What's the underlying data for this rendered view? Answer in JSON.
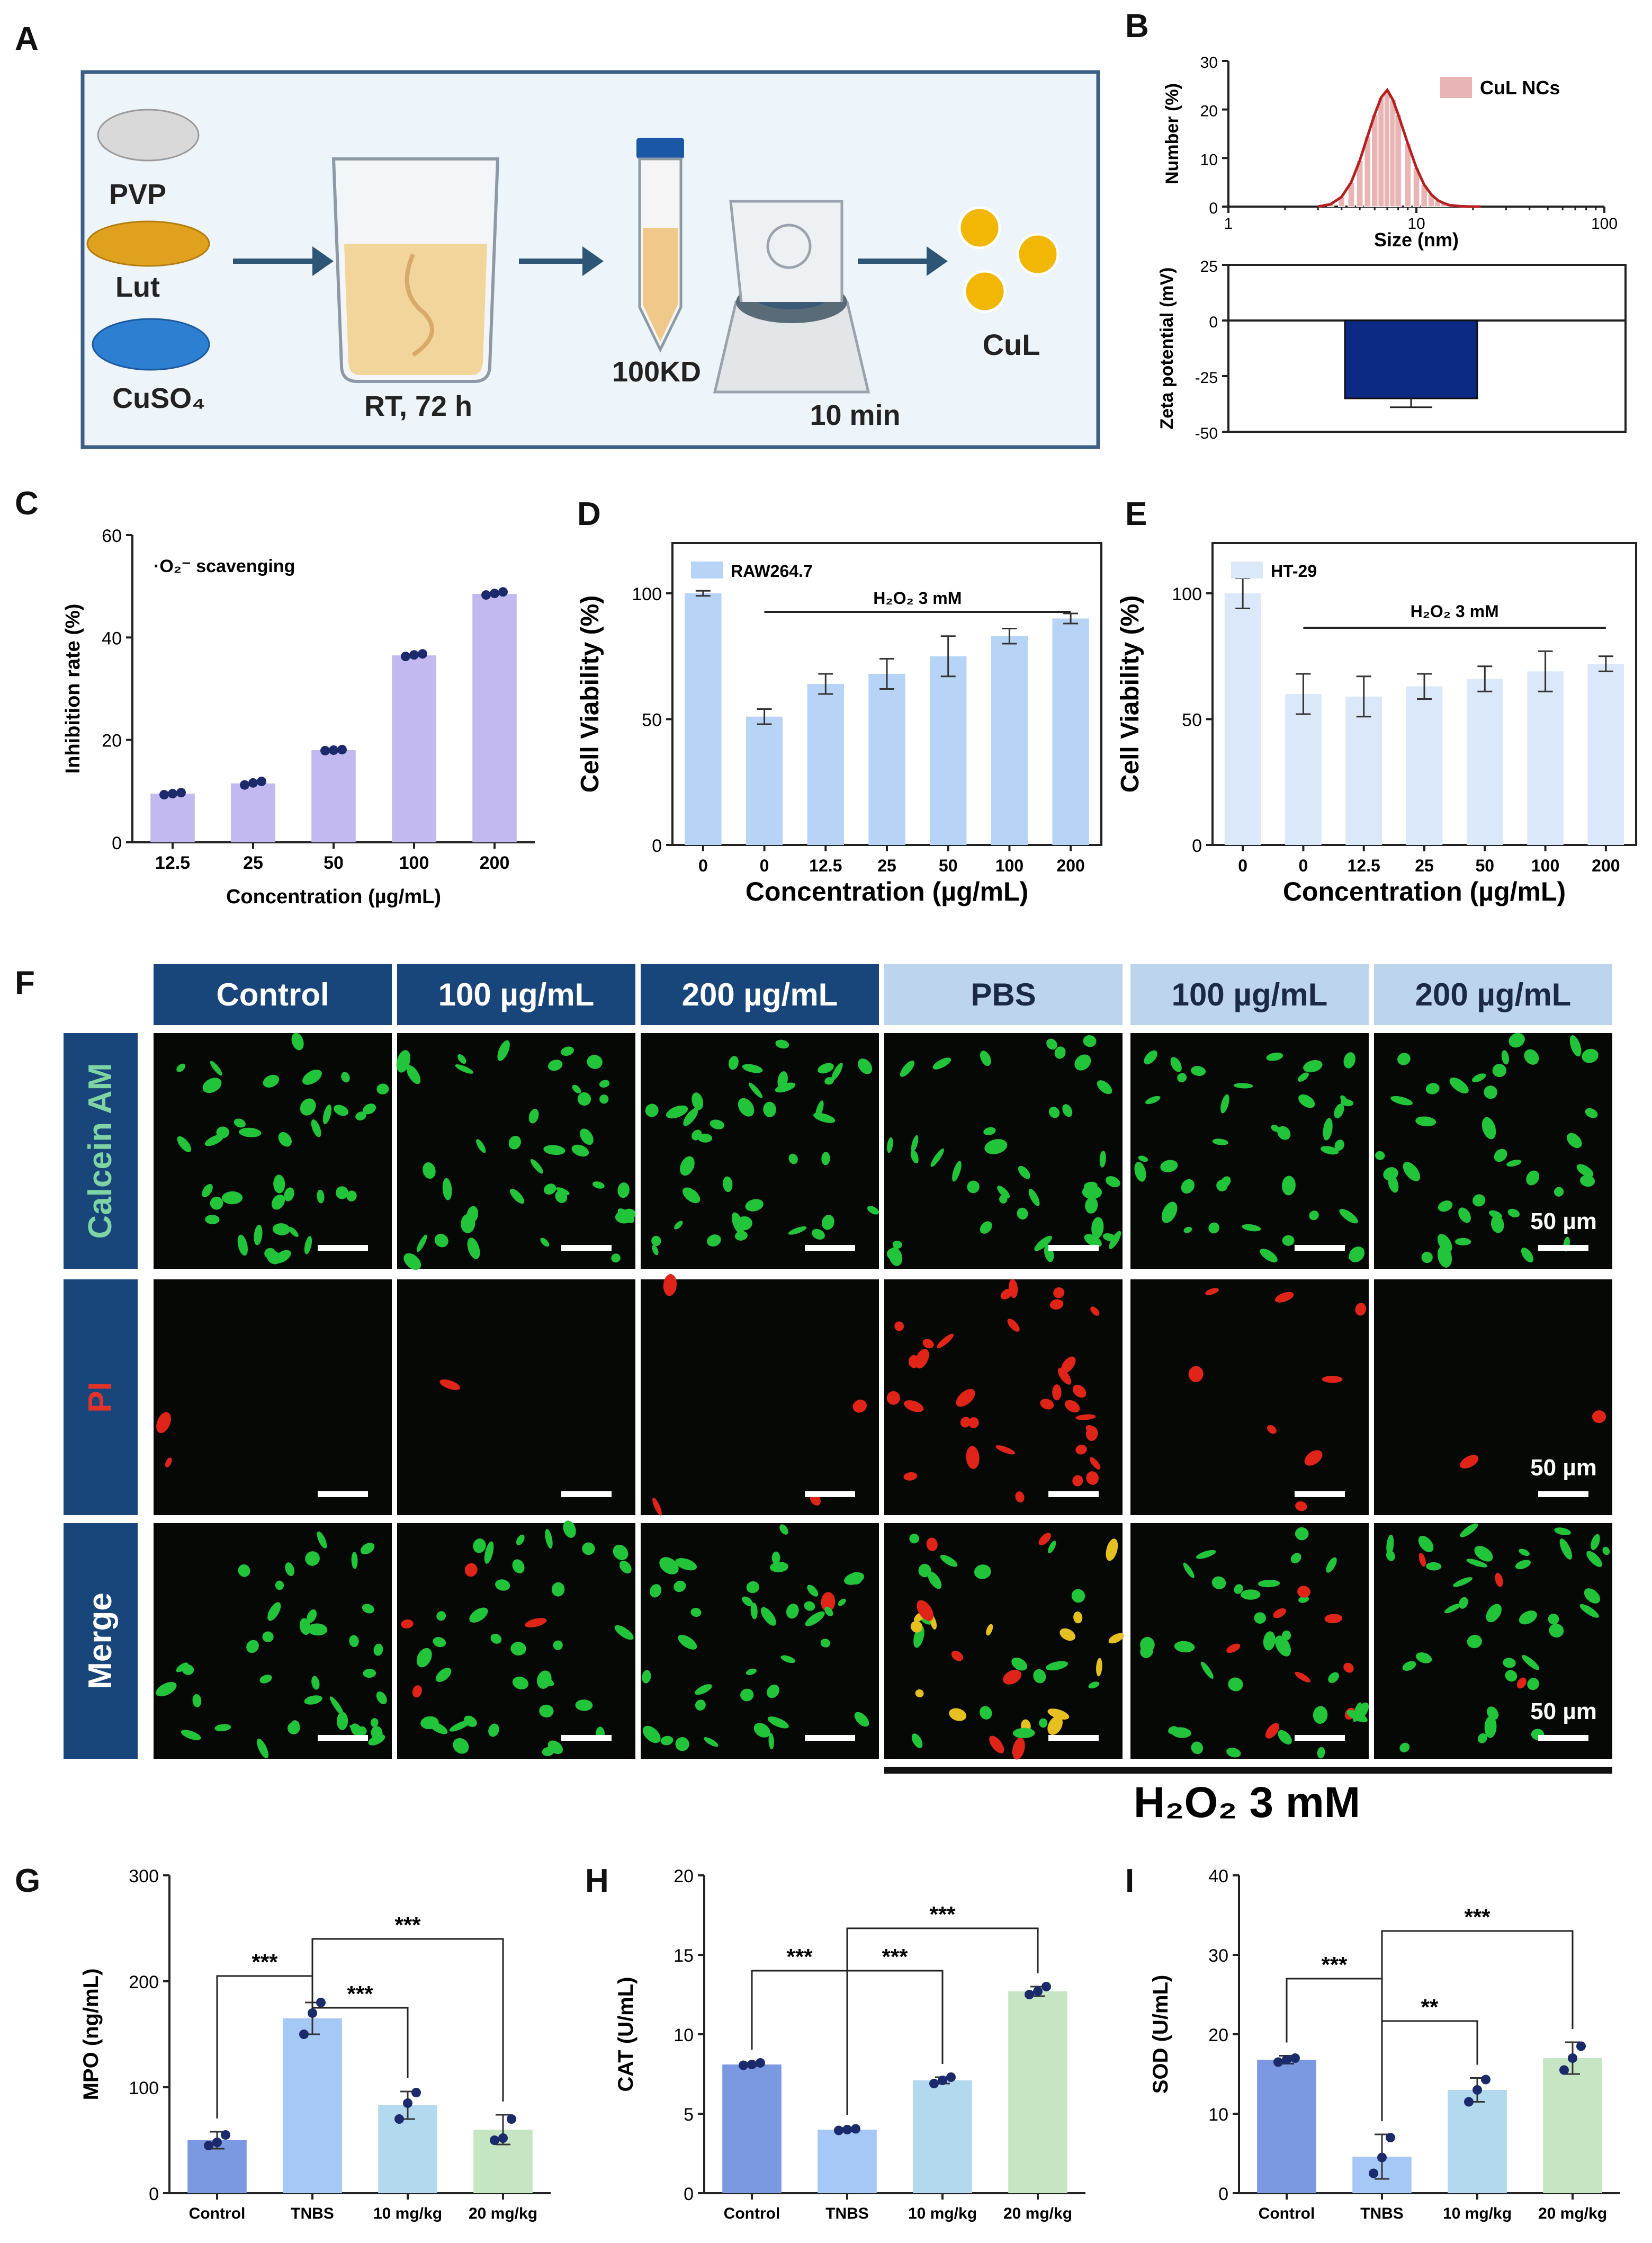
{
  "panel_labels": [
    "A",
    "B",
    "C",
    "D",
    "E",
    "F",
    "G",
    "H",
    "I"
  ],
  "scheme": {
    "reagents": [
      "PVP",
      "Lut",
      "CuSO₄"
    ],
    "step1": "RT, 72 h",
    "step2": "100KD",
    "step3": "10 min",
    "product": "CuL",
    "colors": {
      "frame": "#3b5f86",
      "bg": "#edf4fa",
      "arrow": "#2e5575",
      "gold": "#f2b705",
      "blue": "#2d7fd2"
    }
  },
  "fig": {
    "columns": [
      "Control",
      "100 µg/mL",
      "200 µg/mL",
      "PBS",
      "100 µg/mL",
      "200 µg/mL"
    ],
    "rows": [
      "Calcein AM",
      "PI",
      "Merge"
    ],
    "scale": "50 µm",
    "h2o2_label": "H₂O₂ 3 mM",
    "colors": {
      "dark_header": "#18457a",
      "light_header": "#bdd5ec",
      "calcein": "#7fd4a4",
      "pi": "#e0342a",
      "merge": "#ffffff",
      "green": "#22c43a",
      "red": "#e02418"
    }
  },
  "chart_data": [
    {
      "id": "B-top",
      "type": "area",
      "x_scale": "log",
      "x": [
        3,
        3.5,
        4,
        4.5,
        5,
        5.5,
        6,
        6.5,
        7,
        7.5,
        8,
        9,
        10,
        11,
        12,
        13,
        14,
        15,
        17,
        19,
        22
      ],
      "values": [
        0,
        0.5,
        2,
        5,
        9.5,
        14.5,
        19,
        22.5,
        24,
        22,
        19,
        13,
        8,
        4.5,
        2.5,
        1.3,
        0.7,
        0.3,
        0.1,
        0,
        0
      ],
      "series": [
        {
          "name": "CuL NCs"
        }
      ],
      "xlabel": "Size (nm)",
      "ylabel": "Number (%)",
      "xlim": [
        1,
        100
      ],
      "ylim": [
        0,
        30
      ],
      "xticks": [
        "1",
        "10",
        "100"
      ],
      "yticks": [
        "0",
        "10",
        "20",
        "30"
      ],
      "colors": {
        "line": "#b52020",
        "fill": "#e8b4b4"
      }
    },
    {
      "id": "B-bottom",
      "type": "bar",
      "values": [
        -35
      ],
      "error": [
        4
      ],
      "ylabel": "Zeta potential (mV)",
      "ylim": [
        -50,
        25
      ],
      "yticks": [
        "25",
        "0",
        "-25",
        "-50"
      ],
      "colors": {
        "bar": "#0c2a84"
      }
    },
    {
      "id": "C",
      "type": "bar",
      "categories": [
        "12.5",
        "25",
        "50",
        "100",
        "200"
      ],
      "values": [
        9.5,
        11.5,
        18,
        36.5,
        48.5
      ],
      "points": [
        [
          9.3,
          9.5,
          9.7
        ],
        [
          11.2,
          11.6,
          11.9
        ],
        [
          17.9,
          18,
          18.1
        ],
        [
          36.3,
          36.6,
          36.8
        ],
        [
          48.3,
          48.6,
          48.9
        ]
      ],
      "annotation": "·O₂⁻ scavenging",
      "xlabel": "Concentration (µg/mL)",
      "ylabel": "Inhibition rate (%)",
      "ylim": [
        0,
        60
      ],
      "yticks": [
        "0",
        "20",
        "40",
        "60"
      ],
      "colors": {
        "bar": "#c2b9f0"
      }
    },
    {
      "id": "D",
      "type": "bar",
      "categories": [
        "0",
        "0",
        "12.5",
        "25",
        "50",
        "100",
        "200"
      ],
      "values": [
        100,
        51,
        64,
        68,
        75,
        83,
        90
      ],
      "error": [
        1,
        3,
        4,
        6,
        8,
        3,
        2
      ],
      "series": [
        {
          "name": "RAW264.7"
        }
      ],
      "annotation": "H₂O₂ 3 mM",
      "xlabel": "Concentration (µg/mL)",
      "ylabel": "Cell Viability (%)",
      "ylim": [
        0,
        120
      ],
      "yticks": [
        "0",
        "50",
        "100"
      ],
      "colors": {
        "bar": "#b7d4f6"
      }
    },
    {
      "id": "E",
      "type": "bar",
      "categories": [
        "0",
        "0",
        "12.5",
        "25",
        "50",
        "100",
        "200"
      ],
      "values": [
        100,
        60,
        59,
        63,
        66,
        69,
        72
      ],
      "error": [
        6,
        8,
        8,
        5,
        5,
        8,
        3
      ],
      "series": [
        {
          "name": "HT-29"
        }
      ],
      "annotation": "H₂O₂ 3 mM",
      "xlabel": "Concentration (µg/mL)",
      "ylabel": "Cell Viability (%)",
      "ylim": [
        0,
        120
      ],
      "yticks": [
        "0",
        "50",
        "100"
      ],
      "colors": {
        "bar": "#dbe8f9"
      }
    },
    {
      "id": "G",
      "type": "bar",
      "categories": [
        "Control",
        "TNBS",
        "10 mg/kg",
        "20 mg/kg"
      ],
      "values": [
        50,
        165,
        83,
        60
      ],
      "error": [
        8,
        15,
        13,
        14
      ],
      "points": [
        [
          45,
          48,
          55
        ],
        [
          150,
          170,
          180
        ],
        [
          70,
          85,
          95
        ],
        [
          50,
          52,
          70
        ]
      ],
      "sig": [
        {
          "from": 0,
          "to": 1,
          "text": "***"
        },
        {
          "from": 1,
          "to": 2,
          "text": "***"
        },
        {
          "from": 1,
          "to": 3,
          "text": "***"
        }
      ],
      "ylabel": "MPO (ng/mL)",
      "ylim": [
        0,
        300
      ],
      "yticks": [
        "0",
        "100",
        "200",
        "300"
      ],
      "colors": {
        "bars": [
          "#7b99e0",
          "#a6c8f7",
          "#b3d9ee",
          "#c6e5c3"
        ]
      }
    },
    {
      "id": "H",
      "type": "bar",
      "categories": [
        "Control",
        "TNBS",
        "10 mg/kg",
        "20 mg/kg"
      ],
      "values": [
        8.1,
        4.0,
        7.1,
        12.7
      ],
      "error": [
        0.1,
        0.1,
        0.2,
        0.3
      ],
      "points": [
        [
          8.05,
          8.1,
          8.2
        ],
        [
          3.95,
          4.0,
          4.05
        ],
        [
          6.9,
          7.1,
          7.3
        ],
        [
          12.5,
          12.7,
          13.0
        ]
      ],
      "sig": [
        {
          "from": 0,
          "to": 1,
          "text": "***"
        },
        {
          "from": 1,
          "to": 2,
          "text": "***"
        },
        {
          "from": 1,
          "to": 3,
          "text": "***"
        }
      ],
      "ylabel": "CAT (U/mL)",
      "ylim": [
        0,
        20
      ],
      "yticks": [
        "0",
        "5",
        "10",
        "15",
        "20"
      ],
      "colors": {
        "bars": [
          "#7b99e0",
          "#a6c8f7",
          "#b3d9ee",
          "#c6e5c3"
        ]
      }
    },
    {
      "id": "I",
      "type": "bar",
      "categories": [
        "Control",
        "TNBS",
        "10 mg/kg",
        "20 mg/kg"
      ],
      "values": [
        16.8,
        4.6,
        13,
        17
      ],
      "error": [
        0.5,
        2.8,
        1.5,
        2
      ],
      "points": [
        [
          16.5,
          16.8,
          17
        ],
        [
          2.5,
          4.5,
          7
        ],
        [
          11.5,
          13,
          14.3
        ],
        [
          15.5,
          17,
          18.5
        ]
      ],
      "sig": [
        {
          "from": 0,
          "to": 1,
          "text": "***"
        },
        {
          "from": 1,
          "to": 2,
          "text": "**"
        },
        {
          "from": 1,
          "to": 3,
          "text": "***"
        }
      ],
      "ylabel": "SOD (U/mL)",
      "ylim": [
        0,
        40
      ],
      "yticks": [
        "0",
        "10",
        "20",
        "30",
        "40"
      ],
      "colors": {
        "bars": [
          "#7b99e0",
          "#a6c8f7",
          "#b3d9ee",
          "#c6e5c3"
        ]
      }
    }
  ]
}
